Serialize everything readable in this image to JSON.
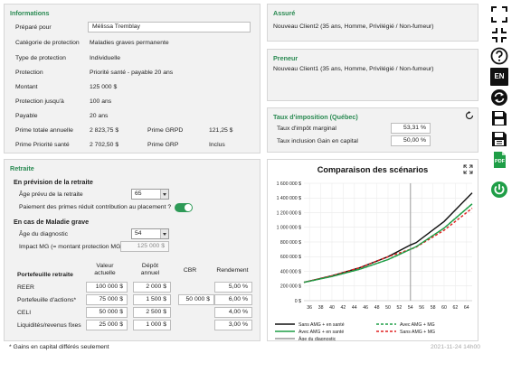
{
  "informations": {
    "title": "Informations",
    "prepared_for_label": "Préparé pour",
    "prepared_for_value": "Mélissa Tremblay",
    "rows": [
      {
        "label": "Catégorie de protection",
        "value": "Maladies graves permanente"
      },
      {
        "label": "Type de protection",
        "value": "Individuelle"
      },
      {
        "label": "Protection",
        "value": "Priorité santé - payable 20 ans"
      },
      {
        "label": "Montant",
        "value": "125 000 $"
      },
      {
        "label": "Protection jusqu'à",
        "value": "100 ans"
      },
      {
        "label": "Payable",
        "value": "20 ans"
      }
    ],
    "prime_totale_label": "Prime totale annuelle",
    "prime_totale_value": "2 823,75 $",
    "prime_grpd_label": "Prime GRPD",
    "prime_grpd_value": "121,25 $",
    "prime_priorite_label": "Prime Priorité santé",
    "prime_priorite_value": "2 702,50 $",
    "prime_grp_label": "Prime GRP",
    "prime_grp_value": "Inclus"
  },
  "assure": {
    "title": "Assuré",
    "value": "Nouveau Client2 (35 ans, Homme, Privilégié / Non-fumeur)"
  },
  "preneur": {
    "title": "Preneur",
    "value": "Nouveau Client1 (35 ans, Homme, Privilégié / Non-fumeur)"
  },
  "taux": {
    "title": "Taux d'imposition (Québec)",
    "marginal_label": "Taux d'impôt marginal",
    "marginal_value": "53,31 %",
    "inclusion_label": "Taux inclusion Gain en capital",
    "inclusion_value": "50,00 %"
  },
  "retraite": {
    "title": "Retraite",
    "prevision_heading": "En prévision de la retraite",
    "age_retraite_label": "Âge prévu de la retraite",
    "age_retraite_value": "65",
    "paiement_label": "Paiement des primes réduit contribution au placement ?",
    "maladie_heading": "En cas de Maladie grave",
    "age_diag_label": "Âge du diagnostic",
    "age_diag_value": "54",
    "impact_label": "Impact MG (= montant protection MG)",
    "impact_value": "125 000 $",
    "portefeuille_heading": "Portefeuille retraite",
    "col_valeur": "Valeur actuelle",
    "col_depot": "Dépôt annuel",
    "col_cbr": "CBR",
    "col_rendement": "Rendement",
    "rows": [
      {
        "label": "REER",
        "valeur": "100 000 $",
        "depot": "2 000 $",
        "cbr": "",
        "rendement": "5,00 %"
      },
      {
        "label": "Portefeuille d'actions*",
        "valeur": "75 000 $",
        "depot": "1 500 $",
        "cbr": "50 000 $",
        "rendement": "6,00 %"
      },
      {
        "label": "CELI",
        "valeur": "50 000 $",
        "depot": "2 500 $",
        "cbr": "",
        "rendement": "4,00 %"
      },
      {
        "label": "Liquidités/revenus fixes",
        "valeur": "25 000 $",
        "depot": "1 000 $",
        "cbr": "",
        "rendement": "3,00 %"
      }
    ]
  },
  "footnote": "* Gains en capital différés seulement",
  "timestamp": "2021-11-24 14h00",
  "sidebar_icons": [
    "expand-icon",
    "collapse-icon",
    "help-icon",
    "language-en-icon",
    "refresh-icon",
    "save-icon",
    "save-as-icon",
    "pdf-icon",
    "power-icon"
  ],
  "language_label": "EN",
  "pdf_label": "PDF",
  "colors": {
    "accent": "#2a8a52",
    "black": "#111111",
    "green": "#1f9e47",
    "red": "#e02020",
    "marker": "#999999"
  },
  "chart_data": {
    "type": "line",
    "title": "Comparaison des scénarios",
    "x_ticks": [
      "36",
      "38",
      "40",
      "42",
      "44",
      "46",
      "48",
      "50",
      "52",
      "54",
      "56",
      "58",
      "60",
      "62",
      "64"
    ],
    "y_ticks": [
      "0 $",
      "200 000 $",
      "400 000 $",
      "600 000 $",
      "800 000 $",
      "1 000 000 $",
      "1 200 000 $",
      "1 400 000 $",
      "1 600 000 $"
    ],
    "xlim": [
      35,
      65
    ],
    "ylim": [
      0,
      1600000
    ],
    "x": [
      35,
      40,
      45,
      50,
      54,
      55,
      60,
      65
    ],
    "series": [
      {
        "name": "Sans AMG + en santé",
        "color": "#111111",
        "dash": false,
        "values": [
          250000,
          340000,
          450000,
          600000,
          760000,
          790000,
          1080000,
          1470000
        ]
      },
      {
        "name": "Avec AMG + en santé",
        "color": "#1f9e47",
        "dash": false,
        "values": [
          250000,
          330000,
          430000,
          560000,
          700000,
          735000,
          990000,
          1320000
        ]
      },
      {
        "name": "Avec AMG + MG",
        "color": "#1f9e47",
        "dash": true,
        "values": [
          250000,
          330000,
          430000,
          560000,
          700000,
          735000,
          990000,
          1320000
        ]
      },
      {
        "name": "Sans AMG + MG",
        "color": "#e02020",
        "dash": true,
        "values": [
          250000,
          340000,
          450000,
          600000,
          700000,
          730000,
          960000,
          1260000
        ]
      }
    ],
    "marker_label": "Âge du diagnostic",
    "marker_x": 54,
    "grid": true,
    "legend": "bottom"
  }
}
